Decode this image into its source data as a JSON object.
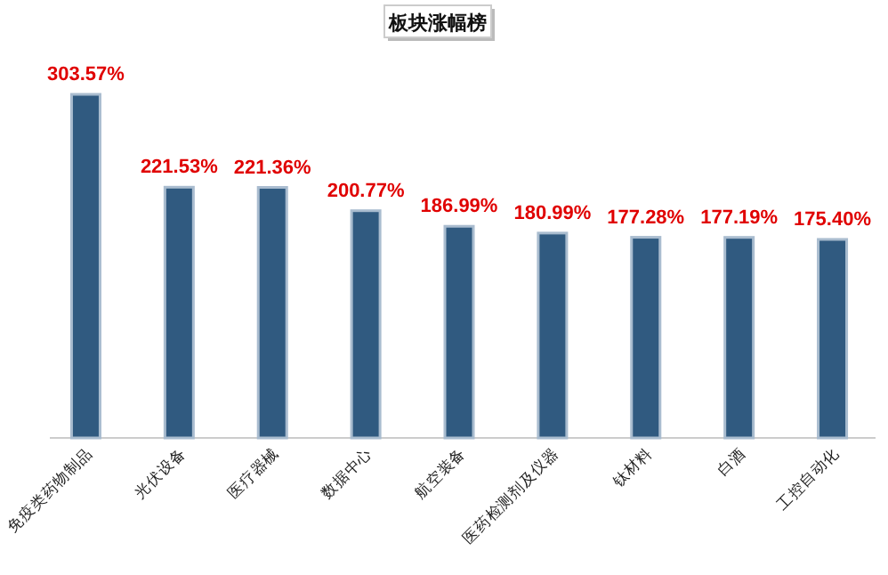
{
  "chart_data": {
    "type": "bar",
    "title": "板块涨幅榜",
    "relative": false,
    "categories": [
      "免疫类药物制品",
      "光伏设备",
      "医疗器械",
      "数据中心",
      "航空装备",
      "医药检测剂及仪器",
      "钛材料",
      "白酒",
      "工控自动化"
    ],
    "values": [
      303.57,
      221.53,
      221.36,
      200.77,
      186.99,
      180.99,
      177.28,
      177.19,
      175.4
    ],
    "value_labels": [
      "303.57%",
      "221.53%",
      "221.36%",
      "200.77%",
      "186.99%",
      "180.99%",
      "177.28%",
      "177.19%",
      "175.40%"
    ],
    "color": "#305a80"
  }
}
